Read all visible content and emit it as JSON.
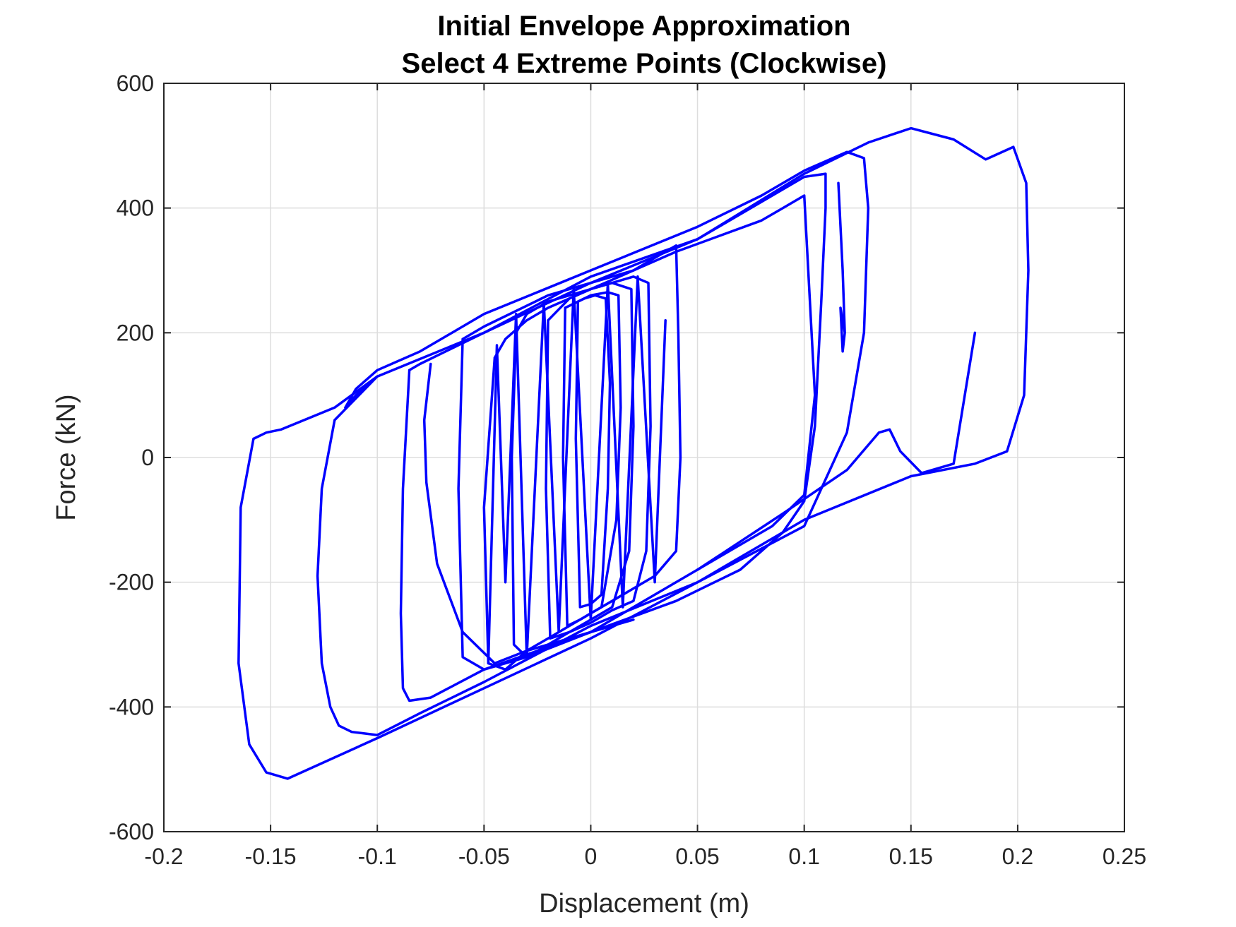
{
  "chart_data": {
    "type": "line",
    "title": [
      "Initial Envelope Approximation",
      "Select 4 Extreme Points (Clockwise)"
    ],
    "xlabel": "Displacement (m)",
    "ylabel": "Force (kN)",
    "xlim": [
      -0.2,
      0.25
    ],
    "ylim": [
      -600,
      600
    ],
    "xticks": [
      -0.2,
      -0.15,
      -0.1,
      -0.05,
      0,
      0.05,
      0.1,
      0.15,
      0.2,
      0.25
    ],
    "xtick_labels": [
      "-0.2",
      "-0.15",
      "-0.1",
      "-0.05",
      "0",
      "0.05",
      "0.1",
      "0.15",
      "0.2",
      "0.25"
    ],
    "yticks": [
      -600,
      -400,
      -200,
      0,
      200,
      400,
      600
    ],
    "ytick_labels": [
      "-600",
      "-400",
      "-200",
      "0",
      "200",
      "400",
      "600"
    ],
    "grid": true,
    "legend": "none",
    "series": [
      {
        "color": "#0000ff",
        "x": [
          0.0,
          0.05,
          0.1,
          0.13,
          0.15,
          0.17,
          0.185,
          0.198,
          0.204,
          0.205,
          0.203,
          0.195,
          0.18,
          0.15,
          0.1,
          0.05,
          0.0,
          -0.05,
          -0.1,
          -0.142,
          -0.152,
          -0.16,
          -0.165,
          -0.164,
          -0.158,
          -0.152,
          -0.145,
          -0.12,
          -0.1,
          -0.05,
          0.0
        ],
        "y": [
          290,
          350,
          455,
          505,
          528,
          510,
          478,
          498,
          440,
          300,
          100,
          10,
          -10,
          -30,
          -100,
          -200,
          -290,
          -370,
          -450,
          -515,
          -505,
          -460,
          -330,
          -80,
          30,
          40,
          45,
          80,
          130,
          200,
          290
        ]
      },
      {
        "color": "#0000ff",
        "x": [
          -0.1,
          -0.12,
          -0.126,
          -0.128,
          -0.126,
          -0.122,
          -0.118,
          -0.112,
          -0.1,
          -0.08,
          -0.05,
          0.0,
          0.05,
          0.1,
          0.12,
          0.128,
          0.13,
          0.128,
          0.12,
          0.1,
          0.08,
          0.05,
          0.0,
          -0.05,
          -0.08,
          -0.1,
          -0.11,
          -0.115,
          -0.11,
          -0.1
        ],
        "y": [
          130,
          60,
          -50,
          -190,
          -330,
          -400,
          -430,
          -440,
          -445,
          -410,
          -360,
          -270,
          -200,
          -110,
          40,
          200,
          400,
          480,
          490,
          460,
          420,
          370,
          300,
          230,
          170,
          140,
          110,
          80,
          100,
          130
        ]
      },
      {
        "color": "#0000ff",
        "x": [
          -0.085,
          -0.088,
          -0.089,
          -0.088,
          -0.085,
          -0.075,
          -0.05,
          0.0,
          0.04,
          0.07,
          0.09,
          0.1,
          0.105,
          0.108,
          0.11,
          0.11,
          0.1,
          0.05,
          0.0,
          -0.05,
          -0.08,
          -0.085
        ],
        "y": [
          140,
          -50,
          -250,
          -370,
          -390,
          -385,
          -340,
          -280,
          -230,
          -180,
          -120,
          -70,
          50,
          250,
          400,
          455,
          450,
          350,
          280,
          200,
          150,
          140
        ]
      },
      {
        "color": "#0000ff",
        "x": [
          -0.06,
          -0.062,
          -0.06,
          -0.05,
          -0.03,
          0.0,
          0.03,
          0.06,
          0.085,
          0.1,
          0.105,
          0.1,
          0.09,
          0.08,
          0.06,
          0.04,
          0.02,
          -0.02,
          -0.05,
          -0.06
        ],
        "y": [
          190,
          -50,
          -320,
          -340,
          -320,
          -280,
          -220,
          -160,
          -110,
          -60,
          100,
          420,
          400,
          380,
          355,
          330,
          300,
          260,
          210,
          190
        ]
      },
      {
        "color": "#0000ff",
        "x": [
          -0.045,
          -0.05,
          -0.048,
          -0.04,
          -0.03,
          -0.02,
          -0.01,
          0.0,
          0.01,
          0.02,
          0.03,
          0.04,
          0.042,
          0.041,
          0.04,
          0.03,
          0.02,
          0.01,
          0.0,
          -0.01,
          -0.02,
          -0.03,
          -0.04,
          -0.045
        ],
        "y": [
          160,
          -80,
          -330,
          -340,
          -310,
          -290,
          -270,
          -250,
          -230,
          -210,
          -190,
          -150,
          0,
          200,
          340,
          320,
          300,
          285,
          270,
          255,
          240,
          220,
          190,
          160
        ]
      },
      {
        "color": "#0000ff",
        "x": [
          -0.035,
          -0.037,
          -0.036,
          -0.03,
          -0.02,
          -0.01,
          0.0,
          0.01,
          0.02,
          0.026,
          0.028,
          0.027,
          0.02,
          0.01,
          0.0,
          -0.01,
          -0.02,
          -0.03,
          -0.035
        ],
        "y": [
          200,
          0,
          -300,
          -320,
          -300,
          -280,
          -265,
          -245,
          -230,
          -150,
          50,
          280,
          290,
          280,
          270,
          260,
          250,
          230,
          200
        ]
      },
      {
        "color": "#0000ff",
        "x": [
          -0.02,
          -0.021,
          -0.019,
          -0.01,
          0.0,
          0.01,
          0.018,
          0.02,
          0.019,
          0.01,
          0.0,
          -0.01,
          -0.02
        ],
        "y": [
          220,
          -50,
          -290,
          -280,
          -260,
          -240,
          -150,
          50,
          270,
          280,
          270,
          255,
          220
        ]
      },
      {
        "color": "#0000ff",
        "x": [
          -0.012,
          -0.013,
          -0.011,
          -0.005,
          0.0,
          0.005,
          0.012,
          0.014,
          0.013,
          0.008,
          0.0,
          -0.006,
          -0.012
        ],
        "y": [
          240,
          0,
          -270,
          -260,
          -250,
          -240,
          -100,
          80,
          260,
          265,
          260,
          250,
          240
        ]
      },
      {
        "color": "#0000ff",
        "x": [
          -0.006,
          -0.007,
          -0.005,
          0.0,
          0.005,
          0.008,
          0.009,
          0.007,
          0.002,
          -0.003,
          -0.006
        ],
        "y": [
          250,
          30,
          -240,
          -235,
          -220,
          -50,
          120,
          255,
          260,
          255,
          250
        ]
      },
      {
        "color": "#0000ff",
        "x": [
          -0.075,
          -0.078,
          -0.077,
          -0.072,
          -0.06,
          -0.045,
          -0.03,
          -0.01,
          0.0,
          0.02
        ],
        "y": [
          150,
          60,
          -40,
          -170,
          -280,
          -330,
          -310,
          -290,
          -280,
          -260
        ]
      },
      {
        "color": "#0000ff",
        "x": [
          -0.048,
          -0.044,
          -0.04,
          -0.035,
          -0.03,
          -0.022,
          -0.015,
          -0.008,
          0.0,
          0.008,
          0.015,
          0.022,
          0.03,
          0.035
        ],
        "y": [
          -330,
          180,
          -200,
          230,
          -320,
          250,
          -280,
          270,
          -260,
          280,
          -240,
          290,
          -200,
          220
        ]
      },
      {
        "color": "#0000ff",
        "x": [
          0.05,
          0.09,
          0.12,
          0.135,
          0.14,
          0.145,
          0.155,
          0.17,
          0.18
        ],
        "y": [
          -180,
          -90,
          -20,
          40,
          45,
          10,
          -25,
          -10,
          200
        ]
      },
      {
        "color": "#0000ff",
        "x": [
          0.116,
          0.118,
          0.119,
          0.118,
          0.117,
          0.119
        ],
        "y": [
          440,
          300,
          200,
          170,
          240,
          200
        ]
      }
    ]
  }
}
